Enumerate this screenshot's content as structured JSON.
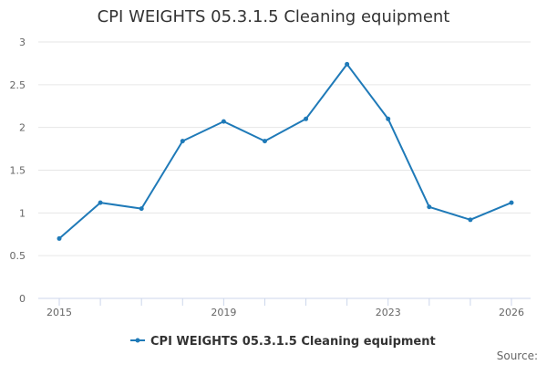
{
  "chart_data": {
    "type": "line",
    "title": "CPI WEIGHTS 05.3.1.5 Cleaning equipment",
    "xlabel": "",
    "ylabel": "",
    "x": [
      2015,
      2016,
      2017,
      2018,
      2019,
      2020,
      2021,
      2022,
      2023,
      2024,
      2025,
      2026
    ],
    "series": [
      {
        "name": "CPI WEIGHTS 05.3.1.5 Cleaning equipment",
        "values": [
          0.7,
          1.12,
          1.05,
          1.84,
          2.07,
          1.84,
          2.1,
          2.74,
          2.1,
          1.07,
          0.92,
          1.12
        ]
      }
    ],
    "ylim": [
      0,
      3
    ],
    "y_ticks": [
      "0",
      "0.5",
      "1",
      "1.5",
      "2",
      "2.5",
      "3"
    ],
    "x_tick_labels": [
      "2015",
      "2019",
      "2023",
      "2026"
    ],
    "grid": true,
    "legend": "bottom-center",
    "color": "#1f7ab8",
    "source_label": "Source:"
  }
}
